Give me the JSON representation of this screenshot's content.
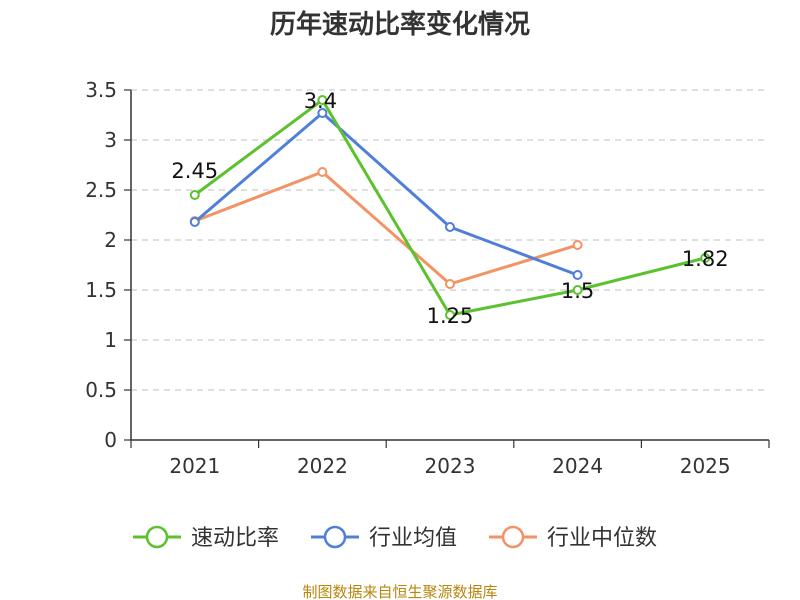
{
  "chart_data": {
    "type": "line",
    "title": "历年速动比率变化情况",
    "categories": [
      "2021",
      "2022",
      "2023",
      "2024",
      "2025"
    ],
    "ylim": [
      0,
      3.5
    ],
    "yticks": [
      "0",
      "0.5",
      "1",
      "1.5",
      "2",
      "2.5",
      "3",
      "3.5"
    ],
    "grid": true,
    "legend_position": "bottom",
    "series": [
      {
        "name": "速动比率",
        "color": "#5cc12f",
        "values": [
          2.45,
          3.4,
          1.25,
          1.5,
          1.82
        ],
        "labels": [
          "2.45",
          "3.4",
          "1.25",
          "1.5",
          "1.82"
        ]
      },
      {
        "name": "行业均值",
        "color": "#4f7fdb",
        "values": [
          2.18,
          3.27,
          2.13,
          1.65,
          null
        ]
      },
      {
        "name": "行业中位数",
        "color": "#f39262",
        "values": [
          2.19,
          2.68,
          1.56,
          1.95,
          null
        ]
      }
    ]
  },
  "source": "制图数据来自恒生聚源数据库"
}
